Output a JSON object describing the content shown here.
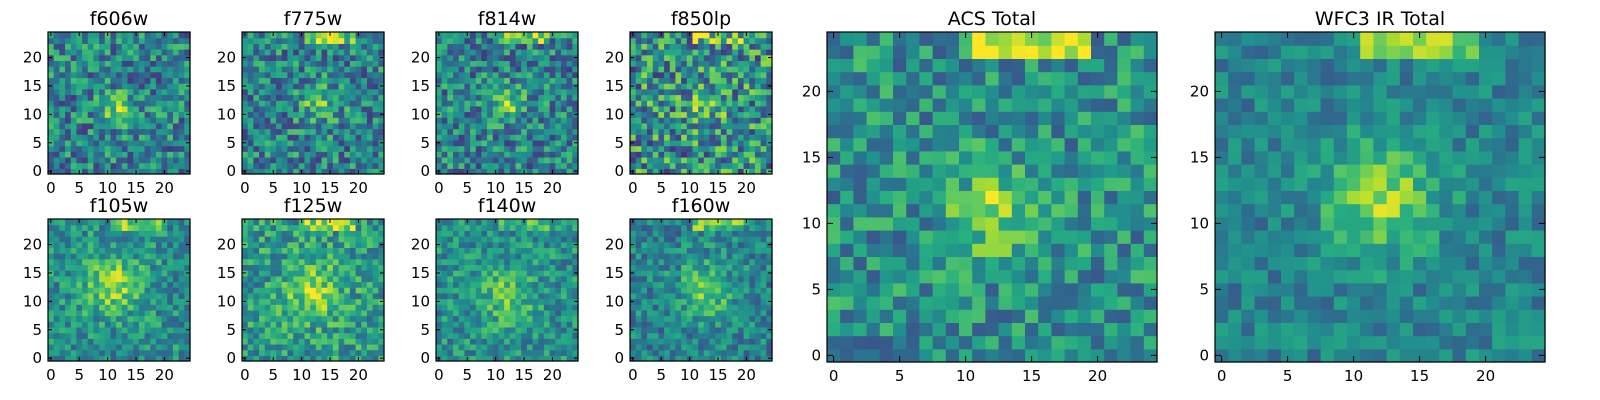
{
  "chart_data": {
    "type": "heatmap",
    "colormap": "viridis",
    "panels": [
      {
        "id": "f606w",
        "title": "f606w",
        "xticks": [
          "0",
          "5",
          "10",
          "15",
          "20"
        ],
        "yticks": [
          "0",
          "5",
          "10",
          "15",
          "20"
        ],
        "peak": [
          12,
          11
        ],
        "spread": 2.0,
        "amp": 0.35,
        "noise": 0.55,
        "seed": 11,
        "base": 0.45,
        "top": 0.0
      },
      {
        "id": "f775w",
        "title": "f775w",
        "xticks": [
          "0",
          "5",
          "10",
          "15",
          "20"
        ],
        "yticks": [
          "0",
          "5",
          "10",
          "15",
          "20"
        ],
        "peak": [
          13,
          12
        ],
        "spread": 2.2,
        "amp": 0.3,
        "noise": 0.55,
        "seed": 23,
        "base": 0.45,
        "top": 0.35
      },
      {
        "id": "f814w",
        "title": "f814w",
        "xticks": [
          "0",
          "5",
          "10",
          "15",
          "20"
        ],
        "yticks": [
          "0",
          "5",
          "10",
          "15",
          "20"
        ],
        "peak": [
          12,
          12
        ],
        "spread": 2.0,
        "amp": 0.35,
        "noise": 0.55,
        "seed": 37,
        "base": 0.45,
        "top": 0.3
      },
      {
        "id": "f850lp",
        "title": "f850lp",
        "xticks": [
          "0",
          "5",
          "10",
          "15",
          "20"
        ],
        "yticks": [
          "0",
          "5",
          "10",
          "15",
          "20"
        ],
        "peak": [
          13,
          12
        ],
        "spread": 2.5,
        "amp": 0.2,
        "noise": 0.7,
        "seed": 41,
        "base": 0.5,
        "top": 0.2
      },
      {
        "id": "f105w",
        "title": "f105w",
        "xticks": [
          "0",
          "5",
          "10",
          "15",
          "20"
        ],
        "yticks": [
          "0",
          "5",
          "10",
          "15",
          "20"
        ],
        "peak": [
          11,
          13
        ],
        "spread": 3.5,
        "amp": 0.35,
        "noise": 0.4,
        "seed": 53,
        "base": 0.5,
        "top": 0.3
      },
      {
        "id": "f125w",
        "title": "f125w",
        "xticks": [
          "0",
          "5",
          "10",
          "15",
          "20"
        ],
        "yticks": [
          "0",
          "5",
          "10",
          "15",
          "20"
        ],
        "peak": [
          12,
          12
        ],
        "spread": 3.5,
        "amp": 0.3,
        "noise": 0.45,
        "seed": 67,
        "base": 0.55,
        "top": 0.3
      },
      {
        "id": "f140w",
        "title": "f140w",
        "xticks": [
          "0",
          "5",
          "10",
          "15",
          "20"
        ],
        "yticks": [
          "0",
          "5",
          "10",
          "15",
          "20"
        ],
        "peak": [
          12,
          11
        ],
        "spread": 3.5,
        "amp": 0.25,
        "noise": 0.4,
        "seed": 71,
        "base": 0.5,
        "top": 0.2
      },
      {
        "id": "f160w",
        "title": "f160w",
        "xticks": [
          "0",
          "5",
          "10",
          "15",
          "20"
        ],
        "yticks": [
          "0",
          "5",
          "10",
          "15",
          "20"
        ],
        "peak": [
          13,
          12
        ],
        "spread": 3.5,
        "amp": 0.3,
        "noise": 0.4,
        "seed": 89,
        "base": 0.45,
        "top": 0.3
      },
      {
        "id": "acs-total",
        "title": "ACS Total",
        "xticks": [
          "0",
          "5",
          "10",
          "15",
          "20"
        ],
        "yticks": [
          "0",
          "5",
          "10",
          "15",
          "20"
        ],
        "peak": [
          12,
          11
        ],
        "spread": 2.2,
        "amp": 0.35,
        "noise": 0.45,
        "seed": 97,
        "base": 0.5,
        "top": 0.45
      },
      {
        "id": "wfc3-ir-total",
        "title": "WFC3 IR Total",
        "xticks": [
          "0",
          "5",
          "10",
          "15",
          "20"
        ],
        "yticks": [
          "0",
          "5",
          "10",
          "15",
          "20"
        ],
        "peak": [
          12,
          12
        ],
        "spread": 3.0,
        "amp": 0.4,
        "noise": 0.3,
        "seed": 103,
        "base": 0.45,
        "top": 0.35
      }
    ],
    "grid_size": 25,
    "xlim": [
      -0.5,
      24.5
    ],
    "ylim": [
      -0.5,
      24.5
    ]
  }
}
